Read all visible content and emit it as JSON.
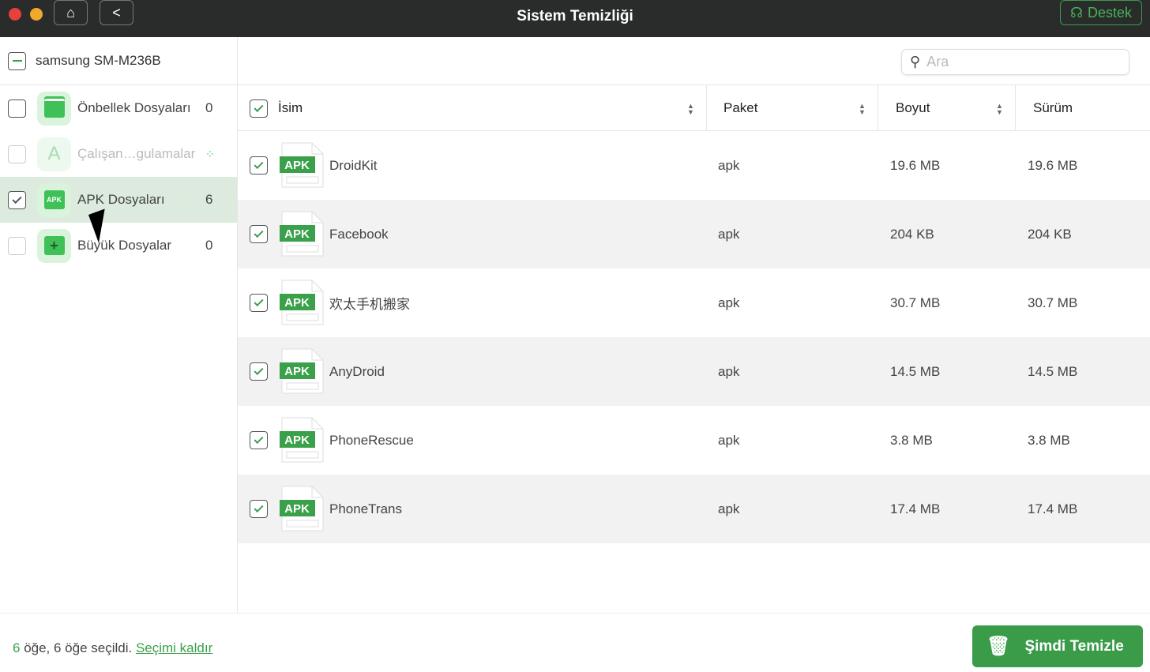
{
  "window": {
    "title": "Sistem Temizliği",
    "support_label": "Destek"
  },
  "sidebar": {
    "device": "samsung SM-M236B",
    "items": [
      {
        "label": "Önbellek Dosyaları",
        "count": "0",
        "checked": false,
        "icon": "cache-icon"
      },
      {
        "label": "Çalışan…gulamalar",
        "count": "",
        "checked": false,
        "icon": "app-store-icon",
        "loading": true
      },
      {
        "label": "APK Dosyaları",
        "count": "6",
        "checked": true,
        "icon": "apk-icon",
        "selected": true
      },
      {
        "label": "Büyük Dosyalar",
        "count": "0",
        "checked": false,
        "icon": "large-file-icon"
      }
    ]
  },
  "search": {
    "placeholder": "Ara"
  },
  "table": {
    "headers": {
      "name": "İsim",
      "package": "Paket",
      "size": "Boyut",
      "version": "Sürüm"
    },
    "rows": [
      {
        "name": "DroidKit",
        "package": "apk",
        "size": "19.6 MB",
        "version": "19.6 MB"
      },
      {
        "name": "Facebook",
        "package": "apk",
        "size": "204 KB",
        "version": "204 KB"
      },
      {
        "name": "欢太手机搬家",
        "package": "apk",
        "size": "30.7 MB",
        "version": "30.7 MB"
      },
      {
        "name": "AnyDroid",
        "package": "apk",
        "size": "14.5 MB",
        "version": "14.5 MB"
      },
      {
        "name": "PhoneRescue",
        "package": "apk",
        "size": "3.8 MB",
        "version": "3.8 MB"
      },
      {
        "name": "PhoneTrans",
        "package": "apk",
        "size": "17.4 MB",
        "version": "17.4 MB"
      }
    ],
    "apk_badge": "APK"
  },
  "footer": {
    "count": "6",
    "status": " öğe, 6 öğe seçildi. ",
    "deselect": "Seçimi kaldır",
    "clean_button": "Şimdi Temizle"
  },
  "colors": {
    "accent": "#3a9c49",
    "titlebar": "#2a2c2c",
    "selected_row": "#dcebdd"
  }
}
